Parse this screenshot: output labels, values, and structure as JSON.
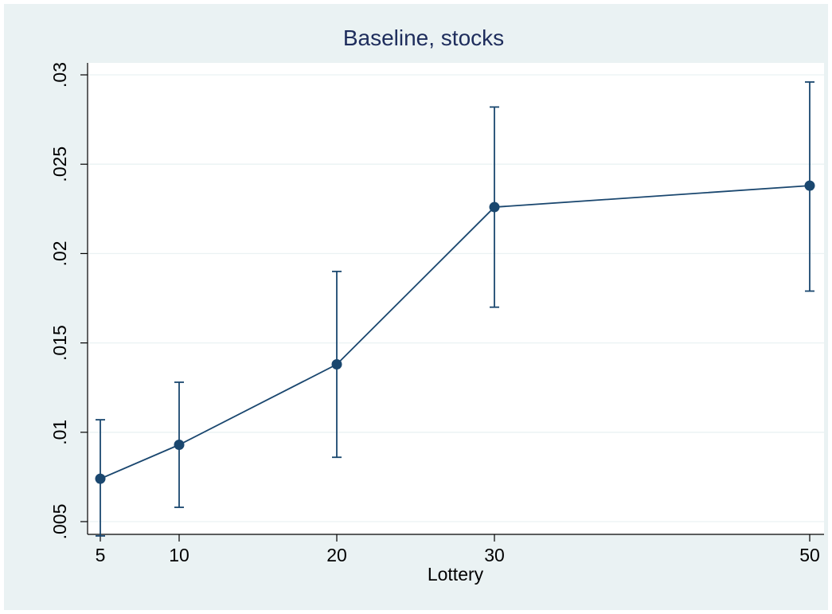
{
  "chart_data": {
    "type": "line",
    "title": "Baseline, stocks",
    "xlabel": "Lottery",
    "ylabel": "",
    "x": [
      5,
      10,
      20,
      30,
      50
    ],
    "x_ticks": [
      5,
      10,
      20,
      30,
      50
    ],
    "x_tick_labels": [
      "5",
      "10",
      "20",
      "30",
      "50"
    ],
    "y_ticks": [
      0.005,
      0.01,
      0.015,
      0.02,
      0.025,
      0.03
    ],
    "y_tick_labels": [
      ".005",
      ".01",
      ".015",
      ".02",
      ".025",
      ".03"
    ],
    "ylim": [
      0.0035,
      0.0305
    ],
    "xlim": [
      5,
      50
    ],
    "grid": "horizontal",
    "series": [
      {
        "values": [
          0.0074,
          0.0093,
          0.0138,
          0.0226,
          0.0238
        ],
        "ci_low": [
          0.0042,
          0.0058,
          0.0086,
          0.017,
          0.0179
        ],
        "ci_high": [
          0.0107,
          0.0128,
          0.019,
          0.0282,
          0.0296
        ]
      }
    ]
  },
  "colors": {
    "background": "#eaf2f3",
    "plot_area": "#ffffff",
    "series": "#1a476f",
    "title": "#1e2d5c",
    "grid": "#eaf2f3"
  }
}
